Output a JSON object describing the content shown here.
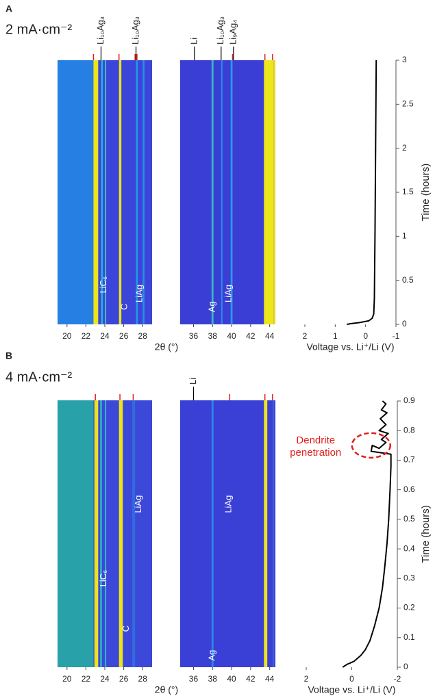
{
  "figure": {
    "panels": [
      {
        "letter": "A",
        "title": "2 mA·cm⁻²"
      },
      {
        "letter": "B",
        "title": "4 mA·cm⁻²"
      }
    ]
  },
  "chart_data": [
    {
      "type": "heatmap",
      "xlabel": "2θ (°)",
      "xlim": [
        19,
        29
      ],
      "xticks": [
        20,
        22,
        24,
        26,
        28
      ],
      "ylim": [
        0,
        3
      ],
      "background": "#3b45d9",
      "stripes": [
        {
          "x": 19,
          "width": 3.8,
          "color": "#2583e3"
        },
        {
          "x": 22.8,
          "width": 0.5,
          "color": "#f5ee12"
        },
        {
          "x": 23.6,
          "width": 0.2,
          "color": "#2ab5d8"
        },
        {
          "x": 24.0,
          "width": 0.15,
          "color": "#3fc1b8"
        },
        {
          "x": 25.5,
          "width": 0.25,
          "color": "#f5ee12"
        },
        {
          "x": 27.3,
          "width": 0.2,
          "color": "#1e9ee6"
        },
        {
          "x": 28.0,
          "width": 0.2,
          "color": "#2890e6"
        }
      ],
      "reference_labels": [
        {
          "text": "Li₁₀Ag₃",
          "x": 23.6
        },
        {
          "text": "Li₁₀Ag₃",
          "x": 27.3
        }
      ],
      "reference_ticks": [
        22.8,
        25.5,
        27.2,
        27.4
      ],
      "annotations": [
        {
          "text": "LiC₆",
          "x": 23.9,
          "time": 0.45
        },
        {
          "text": "C",
          "x": 26.1,
          "time": 0.2
        },
        {
          "text": "LiAg",
          "x": 27.7,
          "time": 0.35
        }
      ]
    },
    {
      "type": "heatmap",
      "xlim": [
        34.6,
        44.6
      ],
      "xticks": [
        36,
        38,
        40,
        42,
        44
      ],
      "ylim": [
        0,
        3
      ],
      "background": "#3a3ed5",
      "stripes": [
        {
          "x": 37.9,
          "width": 0.2,
          "color": "#35c0c0"
        },
        {
          "x": 38.9,
          "width": 0.15,
          "color": "#2a8ee8"
        },
        {
          "x": 39.9,
          "width": 0.2,
          "color": "#2a9ee8"
        },
        {
          "x": 43.4,
          "width": 1.0,
          "color": "#f7ef10"
        },
        {
          "x": 44.4,
          "width": 0.2,
          "color": "#f0e020"
        }
      ],
      "reference_labels": [
        {
          "text": "Li",
          "x": 36.1
        },
        {
          "text": "Li₁₀Ag₃",
          "x": 38.9
        },
        {
          "text": "Li₉Ag₄",
          "x": 40.2
        }
      ],
      "reference_ticks": [
        40.1,
        43.5,
        44.3
      ],
      "annotations": [
        {
          "text": "Ag",
          "x": 38.0,
          "time": 0.2
        },
        {
          "text": "LiAg",
          "x": 39.7,
          "time": 0.35
        }
      ]
    },
    {
      "type": "line",
      "xlabel": "Voltage vs. Li⁺/Li (V)",
      "ylabel": "Time (hours)",
      "xlim": [
        2,
        -1
      ],
      "xticks": [
        2,
        1,
        0,
        -1
      ],
      "ylim": [
        0,
        3
      ],
      "yticks": [
        0,
        0.5,
        1,
        1.5,
        2,
        2.5,
        3
      ],
      "series": [
        {
          "color": "#000000",
          "x": [
            0.62,
            0.45,
            0.2,
            -0.1,
            -0.22,
            -0.27,
            -0.29,
            -0.31,
            -0.33,
            -0.35
          ],
          "values": [
            0,
            0.01,
            0.02,
            0.04,
            0.07,
            0.12,
            0.3,
            1,
            2,
            3
          ]
        }
      ]
    },
    {
      "type": "heatmap",
      "xlabel": "2θ (°)",
      "xlim": [
        19,
        29
      ],
      "xticks": [
        20,
        22,
        24,
        26,
        28
      ],
      "ylim": [
        0,
        0.9
      ],
      "background": "#3b48d8",
      "stripes": [
        {
          "x": 19,
          "width": 3.8,
          "color": "#27a7a5"
        },
        {
          "x": 22.9,
          "width": 0.4,
          "color": "#f5ee12"
        },
        {
          "x": 23.5,
          "width": 0.2,
          "color": "#2ab5c8"
        },
        {
          "x": 24.0,
          "width": 0.15,
          "color": "#30b8c8"
        },
        {
          "x": 25.5,
          "width": 0.4,
          "color": "#f5ee12"
        },
        {
          "x": 26.9,
          "width": 0.3,
          "color": "#2f6ee0"
        }
      ],
      "reference_labels": [],
      "reference_ticks": [
        23.0,
        25.6,
        27.0
      ],
      "annotations": [
        {
          "text": "LiC₆",
          "x": 23.9,
          "time": 0.3
        },
        {
          "text": "C",
          "x": 26.3,
          "time": 0.13
        },
        {
          "text": "LiAg",
          "x": 27.6,
          "time": 0.55
        }
      ]
    },
    {
      "type": "heatmap",
      "xlim": [
        34.6,
        44.6
      ],
      "xticks": [
        36,
        38,
        40,
        42,
        44
      ],
      "ylim": [
        0,
        0.9
      ],
      "background": "#3a3fd5",
      "stripes": [
        {
          "x": 37.9,
          "width": 0.2,
          "color": "#2a8ee8"
        },
        {
          "x": 43.4,
          "width": 0.35,
          "color": "#f5ee12"
        },
        {
          "x": 44.3,
          "width": 0.15,
          "color": "#4060e0"
        }
      ],
      "reference_labels": [
        {
          "text": "Li",
          "x": 36.0
        }
      ],
      "reference_ticks": [
        39.8,
        43.5,
        44.3
      ],
      "annotations": [
        {
          "text": "Ag",
          "x": 38.0,
          "time": 0.04
        },
        {
          "text": "LiAg",
          "x": 39.7,
          "time": 0.55
        }
      ]
    },
    {
      "type": "line",
      "xlabel": "Voltage vs. Li⁺/Li (V)",
      "ylabel": "Time (hours)",
      "xlim": [
        2,
        -2
      ],
      "xticks": [
        2,
        0,
        -2
      ],
      "ylim": [
        0,
        0.9
      ],
      "yticks": [
        0,
        0.1,
        0.2,
        0.3,
        0.4,
        0.5,
        0.6,
        0.7,
        0.8,
        0.9
      ],
      "series": [
        {
          "color": "#000000",
          "x": [
            0.4,
            0.2,
            -0.1,
            -0.4,
            -0.6,
            -0.8,
            -1.0,
            -1.2,
            -1.35,
            -1.45,
            -1.55,
            -1.62,
            -1.68,
            -1.72,
            -1.72,
            -0.85,
            -0.9,
            -1.2,
            -1.5,
            -1.3,
            -1.6,
            -1.2,
            -1.5,
            -1.25,
            -1.55,
            -1.3,
            -1.5,
            -1.35
          ],
          "values": [
            0,
            0.01,
            0.02,
            0.04,
            0.06,
            0.09,
            0.14,
            0.2,
            0.27,
            0.34,
            0.42,
            0.5,
            0.6,
            0.68,
            0.72,
            0.73,
            0.75,
            0.74,
            0.76,
            0.77,
            0.79,
            0.8,
            0.82,
            0.84,
            0.86,
            0.87,
            0.89,
            0.9
          ]
        }
      ],
      "annotations": [
        {
          "text": "Dendrite penetration",
          "x": -0.85,
          "time": 0.75,
          "color": "#e0201b"
        }
      ]
    }
  ]
}
